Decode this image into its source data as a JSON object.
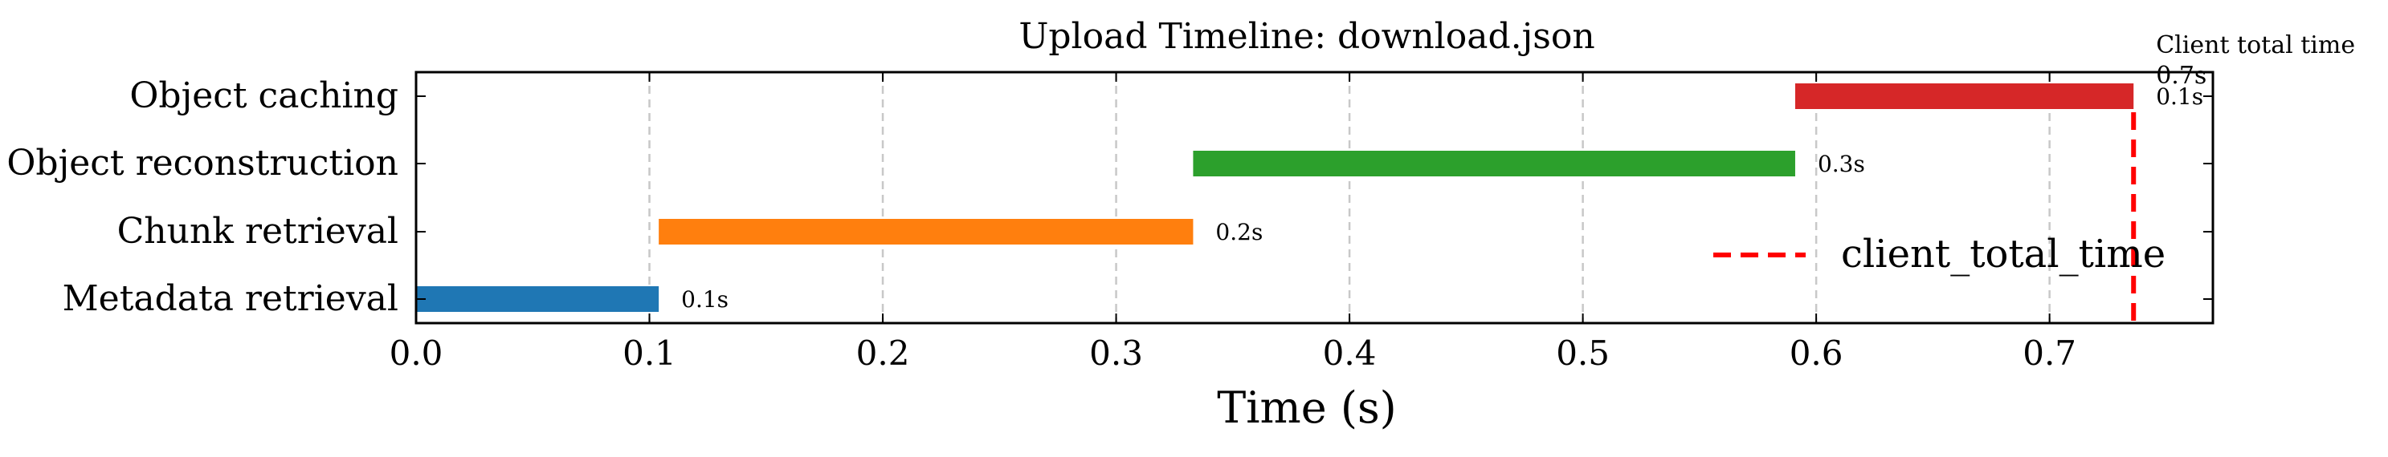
{
  "chart_data": {
    "type": "bar",
    "orientation": "horizontal",
    "title": "Upload Timeline: download.json",
    "xlabel": "Time (s)",
    "ylabel": "",
    "xlim": [
      0,
      0.77
    ],
    "xticks": [
      "0.0",
      "0.1",
      "0.2",
      "0.3",
      "0.4",
      "0.5",
      "0.6",
      "0.7"
    ],
    "grid": "vertical dashed",
    "tasks": [
      {
        "name": "Metadata retrieval",
        "start": 0.0,
        "end": 0.104,
        "label": "0.1s",
        "color": "#1f77b4"
      },
      {
        "name": "Chunk retrieval",
        "start": 0.104,
        "end": 0.333,
        "label": "0.2s",
        "color": "#ff7f0e"
      },
      {
        "name": "Object reconstruction",
        "start": 0.333,
        "end": 0.591,
        "label": "0.3s",
        "color": "#2ca02c"
      },
      {
        "name": "Object caching",
        "start": 0.591,
        "end": 0.736,
        "label": "0.1s",
        "color": "#d62728"
      }
    ],
    "reference_line": {
      "value": 0.736,
      "name": "client_total_time",
      "annotation": [
        "Client total time",
        "0.7s"
      ],
      "color": "#ff0000"
    },
    "legend": {
      "position": "right",
      "entries": [
        "client_total_time"
      ]
    }
  }
}
